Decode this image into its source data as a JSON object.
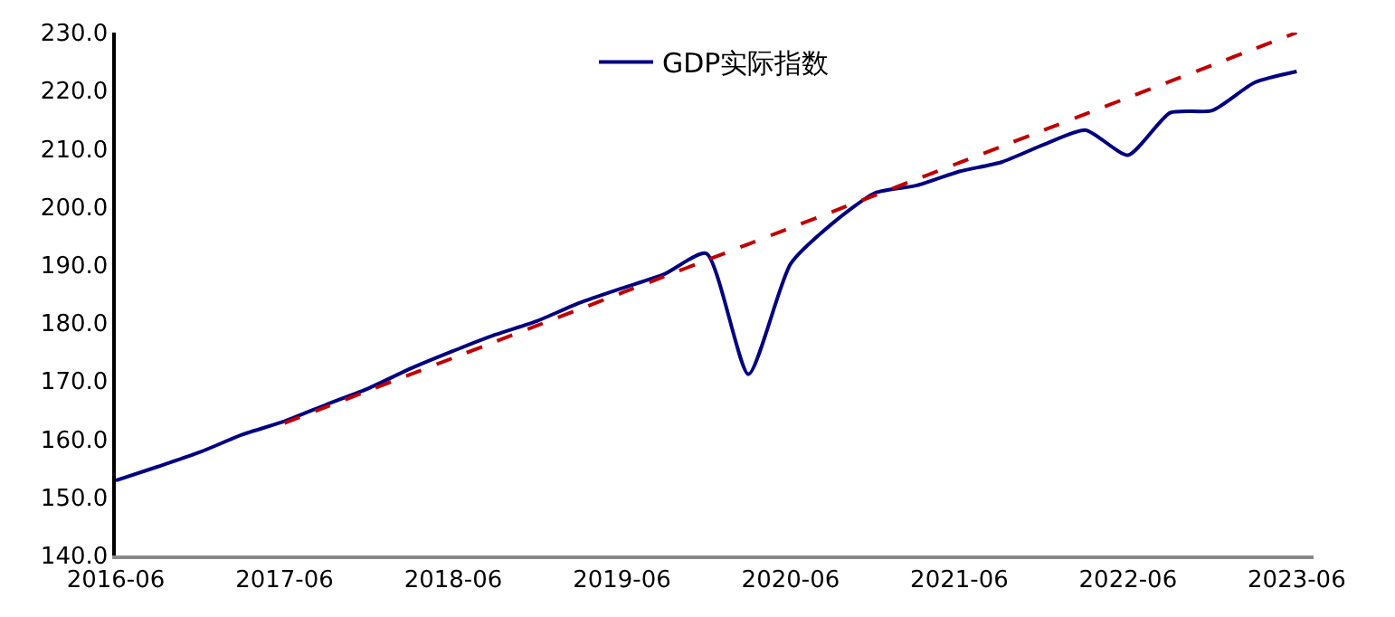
{
  "chart_data": {
    "type": "line",
    "legend": "top",
    "marker": "none",
    "categories": [
      "2016-06",
      null,
      null,
      null,
      "2017-06",
      null,
      null,
      null,
      "2018-06",
      null,
      null,
      null,
      "2019-06",
      null,
      null,
      null,
      "2020-06",
      null,
      null,
      null,
      "2021-06",
      null,
      null,
      null,
      "2022-06",
      null,
      null,
      null,
      "2023-06"
    ],
    "ylim": [
      140,
      230
    ],
    "yticks": [
      {
        "value": 140,
        "label": "140.0"
      },
      {
        "value": 150,
        "label": "150.0"
      },
      {
        "value": 160,
        "label": "160.0"
      },
      {
        "value": 170,
        "label": "170.0"
      },
      {
        "value": 180,
        "label": "180.0"
      },
      {
        "value": 190,
        "label": "190.0"
      },
      {
        "value": 200,
        "label": "200.0"
      },
      {
        "value": 210,
        "label": "210.0"
      },
      {
        "value": 220,
        "label": "220.0"
      },
      {
        "value": 230,
        "label": "230.0"
      }
    ],
    "series": [
      {
        "name": "GDP实际指数",
        "color": "#000080",
        "line_style": "solid",
        "values": [
          152.9,
          155.3,
          157.8,
          160.8,
          163.1,
          166.0,
          168.8,
          172.2,
          175.2,
          178.0,
          180.4,
          183.5,
          186.0,
          188.4,
          192.0,
          171.2,
          190.2,
          197.2,
          202.4,
          203.7,
          206.1,
          207.7,
          210.7,
          213.2,
          208.9,
          216.2,
          216.6,
          221.4,
          223.3
        ]
      },
      {
        "color": "#c00000",
        "line_style": "dashed",
        "values": [
          null,
          null,
          null,
          null,
          162.8,
          165.6,
          168.4,
          171.2,
          174.0,
          176.8,
          179.6,
          182.4,
          185.2,
          188.0,
          190.8,
          193.6,
          196.4,
          199.2,
          202.0,
          204.8,
          207.6,
          210.4,
          213.2,
          216.0,
          218.8,
          221.6,
          224.4,
          227.2,
          230.0
        ]
      }
    ]
  }
}
